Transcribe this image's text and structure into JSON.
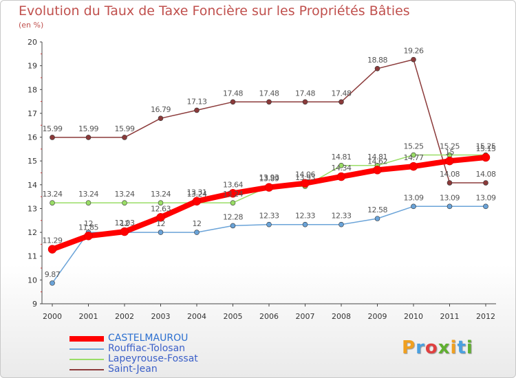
{
  "chart_data": {
    "type": "line",
    "title": "Evolution du Taux de Taxe Foncière sur les Propriétés Bâties",
    "subtitle": "(en %)",
    "xlabel": "",
    "ylabel": "",
    "ylim": [
      9,
      20
    ],
    "yticks": [
      "9",
      "10",
      "11",
      "12",
      "13",
      "14",
      "15",
      "16",
      "17",
      "18",
      "19",
      "20"
    ],
    "x": [
      "2000",
      "2001",
      "2002",
      "2003",
      "2004",
      "2005",
      "2006",
      "2007",
      "2008",
      "2009",
      "2010",
      "2011",
      "2012"
    ],
    "series": [
      {
        "name": "CASTELMAUROU",
        "color": "#ff0000",
        "values": [
          11.29,
          11.85,
          12.03,
          12.63,
          13.31,
          13.64,
          13.89,
          14.06,
          14.34,
          14.62,
          14.77,
          15.0,
          15.15
        ],
        "labels": [
          "11.29",
          "11.85",
          "12.03",
          "12.63",
          "13.31",
          "13.64",
          "13.89",
          "14.06",
          "14.34",
          "14.62",
          "14.77",
          "15",
          "15.15"
        ]
      },
      {
        "name": "Rouffiac-Tolosan",
        "color": "#6aa3d8",
        "values": [
          9.87,
          12.0,
          12.0,
          12.0,
          12.0,
          12.28,
          12.33,
          12.33,
          12.33,
          12.58,
          13.09,
          13.09,
          13.09
        ],
        "labels": [
          "9.87",
          "12",
          "12",
          "12",
          "12",
          "12.28",
          "12.33",
          "12.33",
          "12.33",
          "12.58",
          "13.09",
          "13.09",
          "13.09"
        ]
      },
      {
        "name": "Lapeyrouse-Fossat",
        "color": "#99dd66",
        "values": [
          13.24,
          13.24,
          13.24,
          13.24,
          13.24,
          13.24,
          13.93,
          13.93,
          14.81,
          14.81,
          15.25,
          15.25,
          15.25
        ],
        "labels": [
          "13.24",
          "13.24",
          "13.24",
          "13.24",
          "13.24",
          "13.24",
          "13.93",
          "13.93",
          "14.81",
          "14.81",
          "15.25",
          "15.25",
          "15.25"
        ]
      },
      {
        "name": "Saint-Jean",
        "color": "#8b3a3a",
        "values": [
          15.99,
          15.99,
          15.99,
          16.79,
          17.13,
          17.48,
          17.48,
          17.48,
          17.48,
          18.88,
          19.26,
          14.08,
          14.08
        ],
        "labels": [
          "15.99",
          "15.99",
          "15.99",
          "16.79",
          "17.13",
          "17.48",
          "17.48",
          "17.48",
          "17.48",
          "18.88",
          "19.26",
          "14.08",
          "14.08"
        ]
      }
    ],
    "grid": false,
    "legend": "bottom-left"
  },
  "logo": {
    "letters": [
      "P",
      "r",
      "o",
      "x",
      "i",
      "t",
      "i"
    ],
    "colors": [
      "#f0a020",
      "#4aa0e0",
      "#e04040",
      "#60b030",
      "#f0a020",
      "#4aa0e0",
      "#60b030"
    ]
  }
}
